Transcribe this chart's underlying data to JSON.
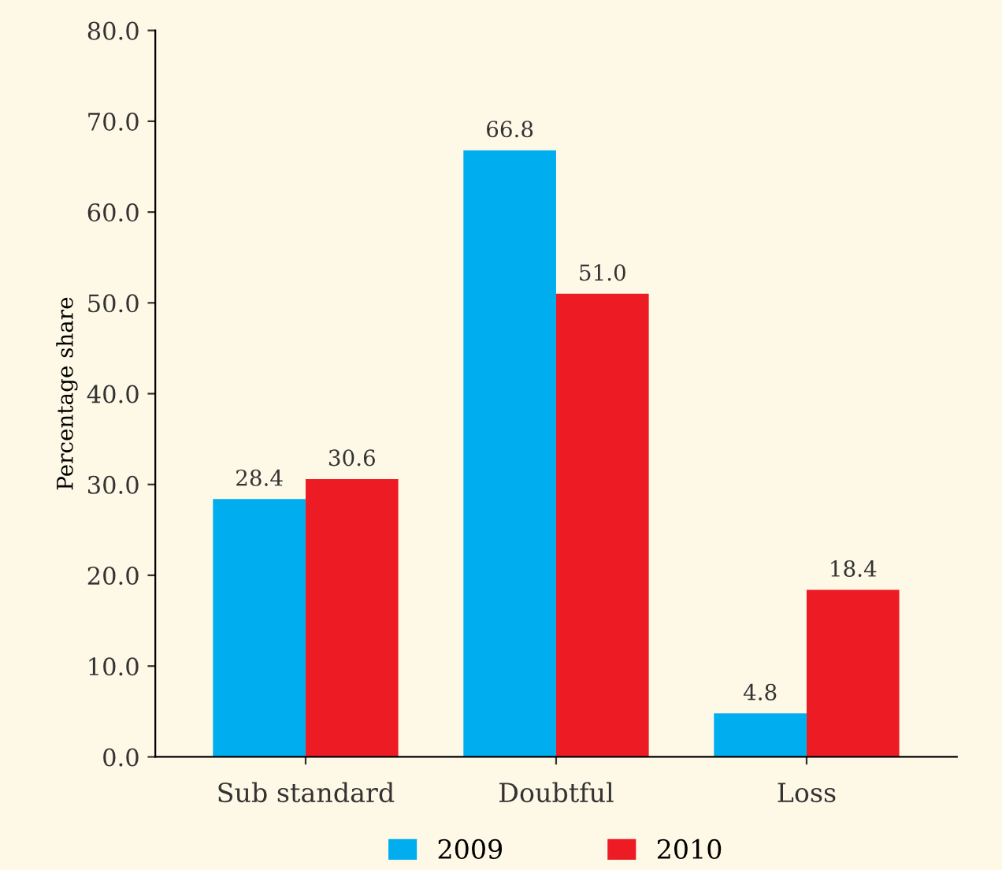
{
  "chart_data": {
    "type": "bar",
    "ylabel": "Percentage share",
    "categories": [
      "Sub standard",
      "Doubtful",
      "Loss"
    ],
    "series": [
      {
        "name": "2009",
        "color": "#00aeef",
        "values": [
          28.4,
          66.8,
          4.8
        ]
      },
      {
        "name": "2010",
        "color": "#ed1c24",
        "values": [
          30.6,
          51.0,
          18.4
        ]
      }
    ],
    "value_labels": [
      [
        "28.4",
        "66.8",
        "4.8"
      ],
      [
        "30.6",
        "51.0",
        "18.4"
      ]
    ],
    "ylim": [
      0,
      80
    ],
    "yticks": [
      {
        "value": 0,
        "label": "0.0"
      },
      {
        "value": 10,
        "label": "10.0"
      },
      {
        "value": 20,
        "label": "20.0"
      },
      {
        "value": 30,
        "label": "30.0"
      },
      {
        "value": 40,
        "label": "40.0"
      },
      {
        "value": 50,
        "label": "50.0"
      },
      {
        "value": 60,
        "label": "60.0"
      },
      {
        "value": 70,
        "label": "70.0"
      },
      {
        "value": 80,
        "label": "80.0"
      }
    ],
    "grid": false,
    "legend": "bottom"
  }
}
